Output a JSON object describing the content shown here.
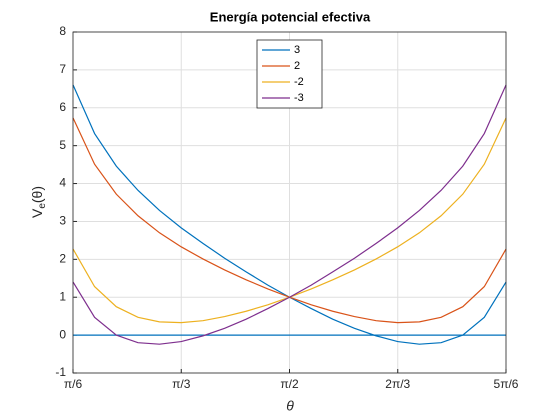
{
  "chart_data": {
    "type": "line",
    "title": "Energía potencial efectiva",
    "xlabel": "θ",
    "ylabel": {
      "main": "V",
      "sub": "e",
      "rest": "(θ)"
    },
    "x": [
      0.524,
      0.628,
      0.733,
      0.838,
      0.942,
      1.047,
      1.152,
      1.257,
      1.361,
      1.466,
      1.571,
      1.676,
      1.78,
      1.885,
      1.99,
      2.094,
      2.199,
      2.304,
      2.409,
      2.513,
      2.618
    ],
    "series": [
      {
        "name": "3",
        "color": "#0072bd",
        "values": [
          6.6,
          5.32,
          4.46,
          3.82,
          3.29,
          2.83,
          2.42,
          2.03,
          1.67,
          1.32,
          1,
          0.7,
          0.42,
          0.18,
          -0.02,
          -0.17,
          -0.24,
          -0.2,
          0.0,
          0.47,
          1.4
        ]
      },
      {
        "name": "2",
        "color": "#d95319",
        "values": [
          5.73,
          4.51,
          3.72,
          3.15,
          2.7,
          2.33,
          2.01,
          1.72,
          1.46,
          1.22,
          1,
          0.8,
          0.63,
          0.49,
          0.38,
          0.33,
          0.35,
          0.47,
          0.75,
          1.28,
          2.27
        ]
      },
      {
        "name": "-2",
        "color": "#edb120",
        "values": [
          2.27,
          1.28,
          0.75,
          0.47,
          0.35,
          0.33,
          0.38,
          0.49,
          0.63,
          0.8,
          1,
          1.22,
          1.46,
          1.72,
          2.01,
          2.33,
          2.7,
          3.15,
          3.72,
          4.51,
          5.73
        ]
      },
      {
        "name": "-3",
        "color": "#7e2f8e",
        "values": [
          1.4,
          0.47,
          0.0,
          -0.2,
          -0.24,
          -0.17,
          -0.02,
          0.18,
          0.42,
          0.7,
          1,
          1.32,
          1.67,
          2.03,
          2.42,
          2.83,
          3.29,
          3.82,
          4.46,
          5.32,
          6.6
        ]
      }
    ],
    "reference_line": {
      "value": 0,
      "color": "#0072bd"
    },
    "xlim": [
      0.5236,
      2.618
    ],
    "ylim": [
      -1,
      8
    ],
    "xticks": [
      {
        "value": 0.5236,
        "label": "π/6"
      },
      {
        "value": 1.0472,
        "label": "π/3"
      },
      {
        "value": 1.5708,
        "label": "π/2"
      },
      {
        "value": 2.0944,
        "label": "2π/3"
      },
      {
        "value": 2.618,
        "label": "5π/6"
      }
    ],
    "yticks": [
      -1,
      0,
      1,
      2,
      3,
      4,
      5,
      6,
      7,
      8
    ],
    "grid": true,
    "legend": "top"
  }
}
